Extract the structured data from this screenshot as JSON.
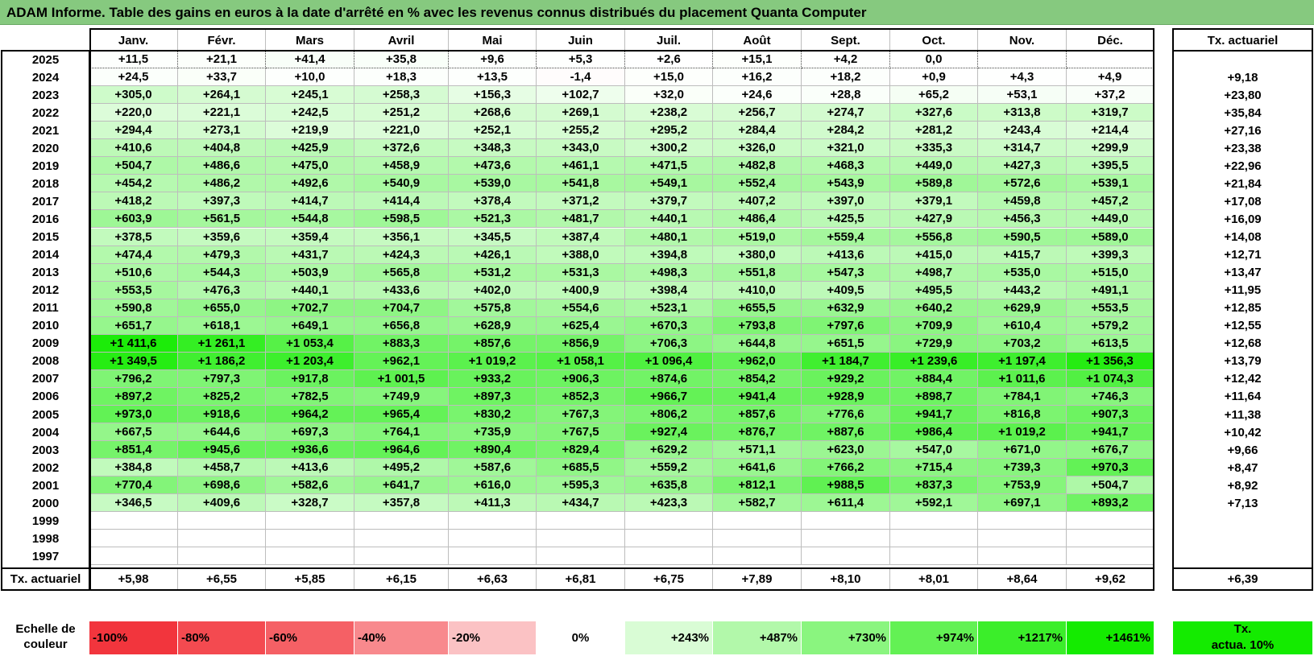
{
  "title": "ADAM Informe. Table des gains en euros à la date d'arrêté en % avec les revenus connus distribués du placement Quanta Computer",
  "months": [
    "Janv.",
    "Févr.",
    "Mars",
    "Avril",
    "Mai",
    "Juin",
    "Juil.",
    "Août",
    "Sept.",
    "Oct.",
    "Nov.",
    "Déc."
  ],
  "annual_header": "Tx. actuariel",
  "rows": [
    {
      "year": "2025",
      "values": [
        "+11,5",
        "+21,1",
        "+41,4",
        "+35,8",
        "+9,6",
        "+5,3",
        "+2,6",
        "+15,1",
        "+4,2",
        "0,0",
        "",
        ""
      ],
      "annual": ""
    },
    {
      "year": "2024",
      "values": [
        "+24,5",
        "+33,7",
        "+10,0",
        "+18,3",
        "+13,5",
        "-1,4",
        "+15,0",
        "+16,2",
        "+18,2",
        "+0,9",
        "+4,3",
        "+4,9"
      ],
      "annual": "+9,18"
    },
    {
      "year": "2023",
      "values": [
        "+305,0",
        "+264,1",
        "+245,1",
        "+258,3",
        "+156,3",
        "+102,7",
        "+32,0",
        "+24,6",
        "+28,8",
        "+65,2",
        "+53,1",
        "+37,2"
      ],
      "annual": "+23,80"
    },
    {
      "year": "2022",
      "values": [
        "+220,0",
        "+221,1",
        "+242,5",
        "+251,2",
        "+268,6",
        "+269,1",
        "+238,2",
        "+256,7",
        "+274,7",
        "+327,6",
        "+313,8",
        "+319,7"
      ],
      "annual": "+35,84"
    },
    {
      "year": "2021",
      "values": [
        "+294,4",
        "+273,1",
        "+219,9",
        "+221,0",
        "+252,1",
        "+255,2",
        "+295,2",
        "+284,4",
        "+284,2",
        "+281,2",
        "+243,4",
        "+214,4"
      ],
      "annual": "+27,16"
    },
    {
      "year": "2020",
      "values": [
        "+410,6",
        "+404,8",
        "+425,9",
        "+372,6",
        "+348,3",
        "+343,0",
        "+300,2",
        "+326,0",
        "+321,0",
        "+335,3",
        "+314,7",
        "+299,9"
      ],
      "annual": "+23,38"
    },
    {
      "year": "2019",
      "values": [
        "+504,7",
        "+486,6",
        "+475,0",
        "+458,9",
        "+473,6",
        "+461,1",
        "+471,5",
        "+482,8",
        "+468,3",
        "+449,0",
        "+427,3",
        "+395,5"
      ],
      "annual": "+22,96"
    },
    {
      "year": "2018",
      "values": [
        "+454,2",
        "+486,2",
        "+492,6",
        "+540,9",
        "+539,0",
        "+541,8",
        "+549,1",
        "+552,4",
        "+543,9",
        "+589,8",
        "+572,6",
        "+539,1"
      ],
      "annual": "+21,84"
    },
    {
      "year": "2017",
      "values": [
        "+418,2",
        "+397,3",
        "+414,7",
        "+414,4",
        "+378,4",
        "+371,2",
        "+379,7",
        "+407,2",
        "+397,0",
        "+379,1",
        "+459,8",
        "+457,2"
      ],
      "annual": "+17,08"
    },
    {
      "year": "2016",
      "values": [
        "+603,9",
        "+561,5",
        "+544,8",
        "+598,5",
        "+521,3",
        "+481,7",
        "+440,1",
        "+486,4",
        "+425,5",
        "+427,9",
        "+456,3",
        "+449,0"
      ],
      "annual": "+16,09"
    },
    {
      "year": "2015",
      "values": [
        "+378,5",
        "+359,6",
        "+359,4",
        "+356,1",
        "+345,5",
        "+387,4",
        "+480,1",
        "+519,0",
        "+559,4",
        "+556,8",
        "+590,5",
        "+589,0"
      ],
      "annual": "+14,08"
    },
    {
      "year": "2014",
      "values": [
        "+474,4",
        "+479,3",
        "+431,7",
        "+424,3",
        "+426,1",
        "+388,0",
        "+394,8",
        "+380,0",
        "+413,6",
        "+415,0",
        "+415,7",
        "+399,3"
      ],
      "annual": "+12,71"
    },
    {
      "year": "2013",
      "values": [
        "+510,6",
        "+544,3",
        "+503,9",
        "+565,8",
        "+531,2",
        "+531,3",
        "+498,3",
        "+551,8",
        "+547,3",
        "+498,7",
        "+535,0",
        "+515,0"
      ],
      "annual": "+13,47"
    },
    {
      "year": "2012",
      "values": [
        "+553,5",
        "+476,3",
        "+440,1",
        "+433,6",
        "+402,0",
        "+400,9",
        "+398,4",
        "+410,0",
        "+409,5",
        "+495,5",
        "+443,2",
        "+491,1"
      ],
      "annual": "+11,95"
    },
    {
      "year": "2011",
      "values": [
        "+590,8",
        "+655,0",
        "+702,7",
        "+704,7",
        "+575,8",
        "+554,6",
        "+523,1",
        "+655,5",
        "+632,9",
        "+640,2",
        "+629,9",
        "+553,5"
      ],
      "annual": "+12,85"
    },
    {
      "year": "2010",
      "values": [
        "+651,7",
        "+618,1",
        "+649,1",
        "+656,8",
        "+628,9",
        "+625,4",
        "+670,3",
        "+793,8",
        "+797,6",
        "+709,9",
        "+610,4",
        "+579,2"
      ],
      "annual": "+12,55"
    },
    {
      "year": "2009",
      "values": [
        "+1 411,6",
        "+1 261,1",
        "+1 053,4",
        "+883,3",
        "+857,6",
        "+856,9",
        "+706,3",
        "+644,8",
        "+651,5",
        "+729,9",
        "+703,2",
        "+613,5"
      ],
      "annual": "+12,68"
    },
    {
      "year": "2008",
      "values": [
        "+1 349,5",
        "+1 186,2",
        "+1 203,4",
        "+962,1",
        "+1 019,2",
        "+1 058,1",
        "+1 096,4",
        "+962,0",
        "+1 184,7",
        "+1 239,6",
        "+1 197,4",
        "+1 356,3"
      ],
      "annual": "+13,79"
    },
    {
      "year": "2007",
      "values": [
        "+796,2",
        "+797,3",
        "+917,8",
        "+1 001,5",
        "+933,2",
        "+906,3",
        "+874,6",
        "+854,2",
        "+929,2",
        "+884,4",
        "+1 011,6",
        "+1 074,3"
      ],
      "annual": "+12,42"
    },
    {
      "year": "2006",
      "values": [
        "+897,2",
        "+825,2",
        "+782,5",
        "+749,9",
        "+897,3",
        "+852,3",
        "+966,7",
        "+941,4",
        "+928,9",
        "+898,7",
        "+784,1",
        "+746,3"
      ],
      "annual": "+11,64"
    },
    {
      "year": "2005",
      "values": [
        "+973,0",
        "+918,6",
        "+964,2",
        "+965,4",
        "+830,2",
        "+767,3",
        "+806,2",
        "+857,6",
        "+776,6",
        "+941,7",
        "+816,8",
        "+907,3"
      ],
      "annual": "+11,38"
    },
    {
      "year": "2004",
      "values": [
        "+667,5",
        "+644,6",
        "+697,3",
        "+764,1",
        "+735,9",
        "+767,5",
        "+927,4",
        "+876,7",
        "+887,6",
        "+986,4",
        "+1 019,2",
        "+941,7"
      ],
      "annual": "+10,42"
    },
    {
      "year": "2003",
      "values": [
        "+851,4",
        "+945,6",
        "+936,6",
        "+964,6",
        "+890,4",
        "+829,4",
        "+629,2",
        "+571,1",
        "+623,0",
        "+547,0",
        "+671,0",
        "+676,7"
      ],
      "annual": "+9,66"
    },
    {
      "year": "2002",
      "values": [
        "+384,8",
        "+458,7",
        "+413,6",
        "+495,2",
        "+587,6",
        "+685,5",
        "+559,2",
        "+641,6",
        "+766,2",
        "+715,4",
        "+739,3",
        "+970,3"
      ],
      "annual": "+8,47"
    },
    {
      "year": "2001",
      "values": [
        "+770,4",
        "+698,6",
        "+582,6",
        "+641,7",
        "+616,0",
        "+595,3",
        "+635,8",
        "+812,1",
        "+988,5",
        "+837,3",
        "+753,9",
        "+504,7"
      ],
      "annual": "+8,92"
    },
    {
      "year": "2000",
      "values": [
        "+346,5",
        "+409,6",
        "+328,7",
        "+357,8",
        "+411,3",
        "+434,7",
        "+423,3",
        "+582,7",
        "+611,4",
        "+592,1",
        "+697,1",
        "+893,2"
      ],
      "annual": "+7,13"
    },
    {
      "year": "1999",
      "values": [
        "",
        "",
        "",
        "",
        "",
        "",
        "",
        "",
        "",
        "",
        "",
        ""
      ],
      "annual": ""
    },
    {
      "year": "1998",
      "values": [
        "",
        "",
        "",
        "",
        "",
        "",
        "",
        "",
        "",
        "",
        "",
        ""
      ],
      "annual": ""
    },
    {
      "year": "1997",
      "values": [
        "",
        "",
        "",
        "",
        "",
        "",
        "",
        "",
        "",
        "",
        "",
        ""
      ],
      "annual": ""
    }
  ],
  "footer": {
    "label": "Tx. actuariel",
    "values": [
      "+5,98",
      "+6,55",
      "+5,85",
      "+6,15",
      "+6,63",
      "+6,81",
      "+6,75",
      "+7,89",
      "+8,10",
      "+8,01",
      "+8,64",
      "+9,62"
    ],
    "annual": "+6,39"
  },
  "legend": {
    "label_line1": "Echelle de",
    "label_line2": "couleur",
    "items": [
      {
        "text": "-100%",
        "color": "#f2353d"
      },
      {
        "text": "-80%",
        "color": "#f44a50"
      },
      {
        "text": "-60%",
        "color": "#f56065"
      },
      {
        "text": "-40%",
        "color": "#f8898d"
      },
      {
        "text": "-20%",
        "color": "#fbc2c4"
      },
      {
        "text": "0%",
        "color": "#ffffff"
      },
      {
        "text": "+243%",
        "color": "#d9fcd5"
      },
      {
        "text": "+487%",
        "color": "#b2f8aa"
      },
      {
        "text": "+730%",
        "color": "#8af57f"
      },
      {
        "text": "+974%",
        "color": "#63f154"
      },
      {
        "text": "+1217%",
        "color": "#3bee2a"
      },
      {
        "text": "+1461%",
        "color": "#14eb00"
      }
    ],
    "annual_line1": "Tx.",
    "annual_line2": "actua. 10%",
    "annual_color": "#14eb00"
  },
  "colors": {
    "title_bar": "#86c97f",
    "scale_positive_max": "#14eb00",
    "scale_negative_max": "#f2353d",
    "scale_max_value": 1461
  }
}
